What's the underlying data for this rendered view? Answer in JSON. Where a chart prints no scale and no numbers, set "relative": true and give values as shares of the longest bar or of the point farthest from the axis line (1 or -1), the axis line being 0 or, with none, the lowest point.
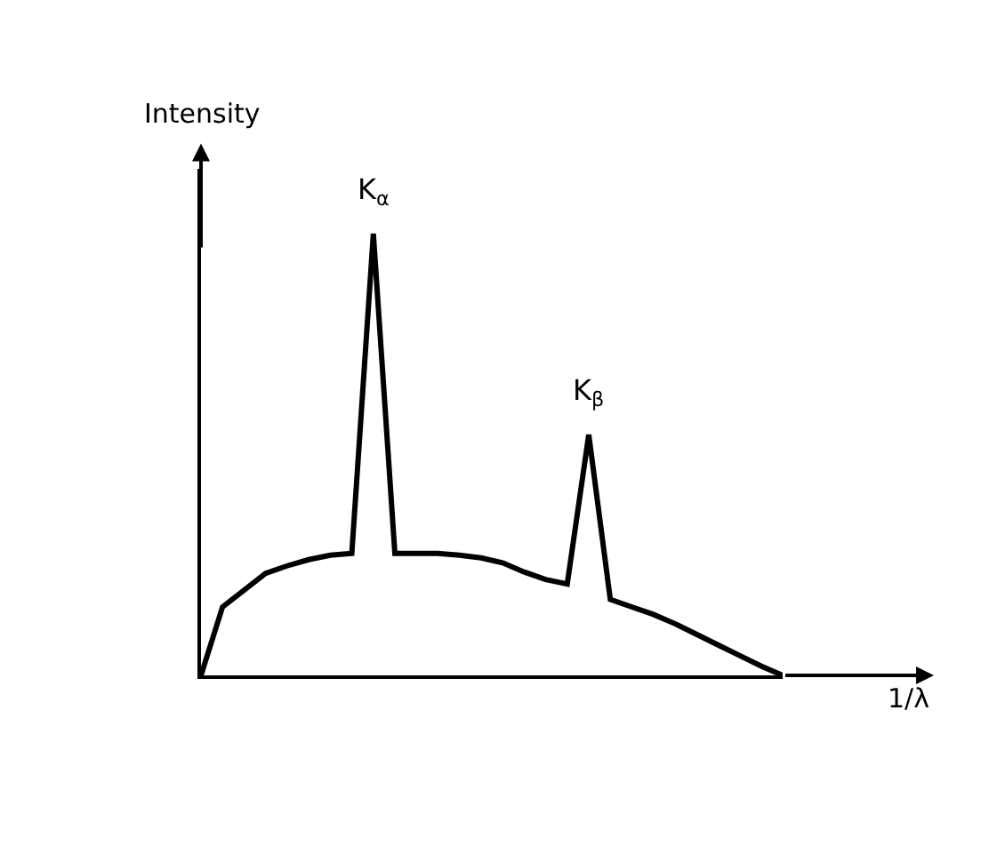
{
  "chart_data": {
    "type": "line",
    "relative": true,
    "xlabel": "1/λ",
    "ylabel": "Intensity",
    "categories": [
      null,
      null,
      null,
      null,
      null,
      null,
      null,
      null,
      null,
      null,
      null,
      null,
      null,
      null,
      null,
      null,
      null,
      null,
      null,
      null,
      null,
      null,
      null,
      null,
      null,
      null,
      null,
      null
    ],
    "series": [
      {
        "color": "#000000",
        "values": [
          0,
          0.155,
          0.193,
          0.231,
          0.248,
          0.262,
          0.272,
          0.276,
          1,
          0.276,
          0.276,
          0.276,
          0.272,
          0.266,
          0.255,
          0.234,
          0.217,
          0.207,
          0.545,
          0.172,
          0.155,
          0.138,
          0.117,
          0.093,
          0.069,
          0.045,
          0.021,
          0
        ]
      }
    ],
    "annotations": [
      "K$_{α}$",
      "K$_{β}$"
    ],
    "marker": "none",
    "line_style": "solid"
  }
}
